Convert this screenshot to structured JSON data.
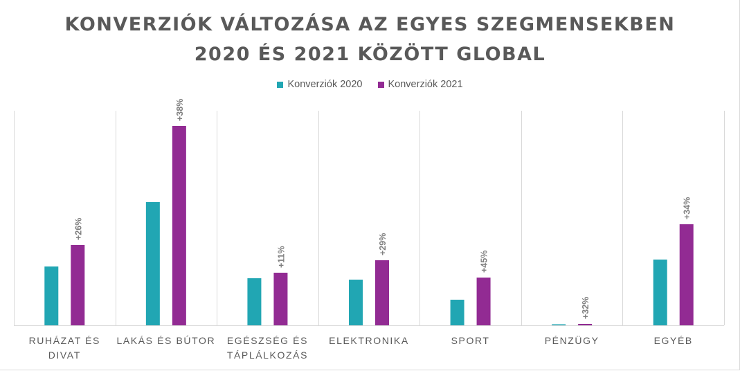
{
  "title": {
    "line1": "KONVERZIÓK VÁLTOZÁSA AZ EGYES SZEGMENSEKBEN",
    "line2": "2020 ÉS 2021 KÖZÖTT GLOBAL"
  },
  "legend": {
    "series1": "Konverziók 2020",
    "series2": "Konverziók 2021"
  },
  "colors": {
    "series1": "#21A6B3",
    "series2": "#922B93",
    "title": "#595959",
    "grid": "#d9d9d9",
    "axis_text": "#595959",
    "data_label": "#7f7f7f"
  },
  "chart_data": {
    "type": "bar",
    "title": "KONVERZIÓK VÁLTOZÁSA AZ EGYES SZEGMENSEKBEN 2020 ÉS 2021 KÖZÖTT GLOBAL",
    "categories": [
      [
        "RUHÁZAT ÉS",
        "DIVAT"
      ],
      [
        "LAKÁS ÉS BÚTOR"
      ],
      [
        "EGÉSZSÉG ÉS",
        "TÁPLÁLKOZÁS"
      ],
      [
        "ELEKTRONIKA"
      ],
      [
        "SPORT"
      ],
      [
        "PÉNZÜGY"
      ],
      [
        "EGYÉB"
      ]
    ],
    "series": [
      {
        "name": "Konverziók 2020",
        "values": [
          85,
          178,
          68,
          66,
          37,
          1,
          95
        ]
      },
      {
        "name": "Konverziók 2021",
        "values": [
          116,
          288,
          76,
          94,
          69,
          2,
          146
        ]
      }
    ],
    "data_labels": [
      "+26%",
      "+38%",
      "+11%",
      "+29%",
      "+45%",
      "+32%",
      "+34%"
    ],
    "ylim": [
      0,
      310
    ],
    "y_axis_visible": false,
    "grid": "vertical category separators",
    "legend_position": "top"
  }
}
